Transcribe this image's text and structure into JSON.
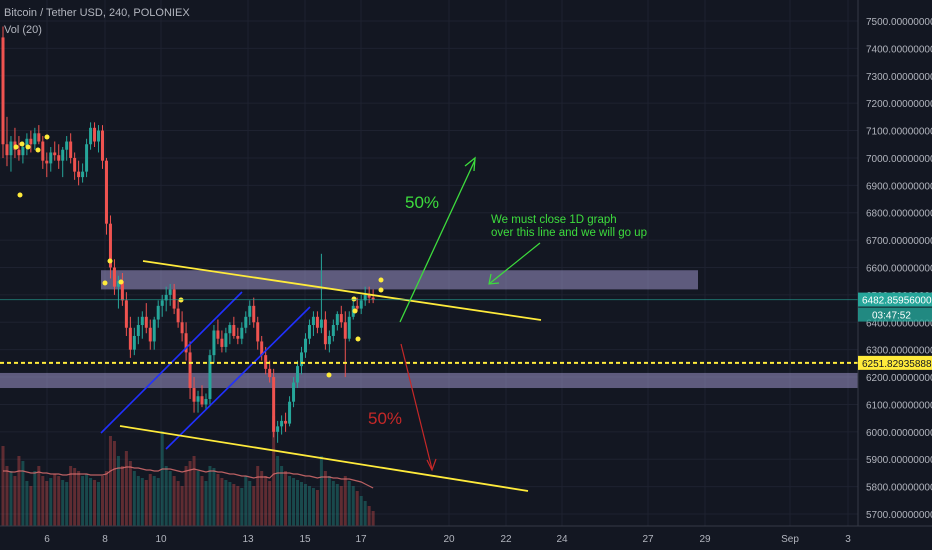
{
  "header": {
    "symbol_line": "Bitcoin / Tether USD, 240, POLONIEX",
    "volume_label": "Vol (20)"
  },
  "colors": {
    "background": "#131722",
    "grid": "#1e2230",
    "up": "#26a69a",
    "down": "#ef5350",
    "axis_text": "#b2b5be",
    "zone_fill": "#9c94c8",
    "trend_line": "#ffeb3b",
    "channel_line": "#2030ff",
    "up_arrow": "#3ddc3d",
    "down_arrow": "#c62828",
    "price_tag": "#ffeb3b",
    "current_price_tag": "#26a69a"
  },
  "chart_data": {
    "type": "candlestick",
    "yaxis": {
      "ticks": [
        "7500.00000000",
        "7400.00000000",
        "7300.00000000",
        "7200.00000000",
        "7100.00000000",
        "7000.00000000",
        "6900.00000000",
        "6800.00000000",
        "6700.00000000",
        "6600.00000000",
        "6500.00000000",
        "6400.00000000",
        "6300.00000000",
        "6200.00000000",
        "6100.00000000",
        "6000.00000000",
        "5900.00000000",
        "5800.00000000",
        "5700.00000000"
      ],
      "range": [
        5680,
        7560
      ]
    },
    "xaxis": {
      "ticks": [
        "6",
        "8",
        "10",
        "13",
        "15",
        "17",
        "20",
        "22",
        "24",
        "27",
        "29",
        "Sep",
        "3"
      ]
    },
    "price_tags": {
      "current": "6482.85956000",
      "countdown": "03:47:52",
      "dotted_level": "6251.82935888"
    },
    "annotations": {
      "up_percent": "50%",
      "down_percent": "50%",
      "note_line1": "We must close 1D graph",
      "note_line2": "over this line and we will go up"
    },
    "zones": [
      {
        "from": 6520,
        "to": 6590
      },
      {
        "from": 6160,
        "to": 6215
      }
    ],
    "candles": [
      [
        7440,
        7480,
        7000,
        7050
      ],
      [
        7050,
        7150,
        6970,
        7010
      ],
      [
        7010,
        7080,
        6950,
        7060
      ],
      [
        7060,
        7110,
        7000,
        7030
      ],
      [
        7030,
        7080,
        6990,
        7010
      ],
      [
        7010,
        7060,
        6980,
        7040
      ],
      [
        7040,
        7090,
        7010,
        7070
      ],
      [
        7070,
        7100,
        7020,
        7050
      ],
      [
        7050,
        7110,
        7030,
        7090
      ],
      [
        7090,
        7120,
        7050,
        7060
      ],
      [
        7060,
        7080,
        6960,
        6990
      ],
      [
        6990,
        7020,
        6930,
        6980
      ],
      [
        6980,
        7040,
        6950,
        7020
      ],
      [
        7020,
        7060,
        6990,
        7010
      ],
      [
        7010,
        7050,
        6960,
        6990
      ],
      [
        6990,
        7040,
        6930,
        7030
      ],
      [
        7030,
        7080,
        6990,
        7060
      ],
      [
        7060,
        7090,
        6980,
        7000
      ],
      [
        7000,
        7020,
        6920,
        6950
      ],
      [
        6950,
        6990,
        6900,
        6930
      ],
      [
        6930,
        6980,
        6910,
        6950
      ],
      [
        6950,
        7070,
        6930,
        7050
      ],
      [
        7050,
        7130,
        7030,
        7110
      ],
      [
        7110,
        7130,
        7040,
        7060
      ],
      [
        7060,
        7120,
        7020,
        7100
      ],
      [
        7100,
        7120,
        6960,
        6990
      ],
      [
        6990,
        7000,
        6720,
        6760
      ],
      [
        6760,
        6790,
        6560,
        6600
      ],
      [
        6600,
        6630,
        6500,
        6530
      ],
      [
        6530,
        6570,
        6450,
        6550
      ],
      [
        6550,
        6580,
        6460,
        6480
      ],
      [
        6480,
        6510,
        6350,
        6380
      ],
      [
        6380,
        6420,
        6270,
        6300
      ],
      [
        6300,
        6380,
        6280,
        6350
      ],
      [
        6350,
        6420,
        6320,
        6390
      ],
      [
        6390,
        6440,
        6340,
        6420
      ],
      [
        6420,
        6470,
        6360,
        6380
      ],
      [
        6380,
        6410,
        6300,
        6330
      ],
      [
        6330,
        6420,
        6300,
        6410
      ],
      [
        6410,
        6480,
        6380,
        6460
      ],
      [
        6460,
        6500,
        6420,
        6480
      ],
      [
        6480,
        6530,
        6440,
        6500
      ],
      [
        6500,
        6540,
        6460,
        6520
      ],
      [
        6520,
        6540,
        6430,
        6450
      ],
      [
        6450,
        6480,
        6380,
        6400
      ],
      [
        6400,
        6440,
        6330,
        6360
      ],
      [
        6360,
        6400,
        6260,
        6290
      ],
      [
        6290,
        6330,
        6120,
        6160
      ],
      [
        6160,
        6200,
        6070,
        6110
      ],
      [
        6110,
        6150,
        6070,
        6130
      ],
      [
        6130,
        6170,
        6090,
        6100
      ],
      [
        6100,
        6140,
        6080,
        6120
      ],
      [
        6120,
        6300,
        6100,
        6280
      ],
      [
        6280,
        6390,
        6250,
        6370
      ],
      [
        6370,
        6410,
        6320,
        6340
      ],
      [
        6340,
        6370,
        6290,
        6310
      ],
      [
        6310,
        6380,
        6290,
        6360
      ],
      [
        6360,
        6400,
        6320,
        6390
      ],
      [
        6390,
        6420,
        6340,
        6350
      ],
      [
        6350,
        6380,
        6320,
        6340
      ],
      [
        6340,
        6400,
        6320,
        6380
      ],
      [
        6380,
        6440,
        6360,
        6420
      ],
      [
        6420,
        6480,
        6390,
        6460
      ],
      [
        6460,
        6490,
        6380,
        6400
      ],
      [
        6400,
        6420,
        6300,
        6330
      ],
      [
        6330,
        6350,
        6260,
        6280
      ],
      [
        6280,
        6310,
        6210,
        6230
      ],
      [
        6230,
        6260,
        6180,
        6200
      ],
      [
        6200,
        6230,
        5980,
        6000
      ],
      [
        6000,
        6040,
        5960,
        6020
      ],
      [
        6020,
        6060,
        5990,
        6040
      ],
      [
        6040,
        6070,
        6000,
        6030
      ],
      [
        6030,
        6130,
        6020,
        6110
      ],
      [
        6110,
        6200,
        6090,
        6180
      ],
      [
        6180,
        6260,
        6160,
        6240
      ],
      [
        6240,
        6310,
        6210,
        6290
      ],
      [
        6290,
        6360,
        6270,
        6340
      ],
      [
        6340,
        6410,
        6320,
        6390
      ],
      [
        6390,
        6440,
        6350,
        6420
      ],
      [
        6420,
        6440,
        6360,
        6380
      ],
      [
        6380,
        6650,
        6360,
        6410
      ],
      [
        6410,
        6440,
        6300,
        6320
      ],
      [
        6320,
        6370,
        6290,
        6350
      ],
      [
        6350,
        6410,
        6330,
        6390
      ],
      [
        6390,
        6440,
        6370,
        6430
      ],
      [
        6430,
        6460,
        6380,
        6400
      ],
      [
        6400,
        6440,
        6200,
        6340
      ],
      [
        6340,
        6440,
        6330,
        6420
      ],
      [
        6420,
        6480,
        6410,
        6460
      ],
      [
        6460,
        6490,
        6440,
        6450
      ],
      [
        6450,
        6500,
        6430,
        6480
      ],
      [
        6480,
        6530,
        6460,
        6500
      ],
      [
        6500,
        6530,
        6470,
        6490
      ],
      [
        6490,
        6520,
        6470,
        6483
      ]
    ],
    "volumes": [
      80,
      60,
      55,
      50,
      70,
      65,
      45,
      40,
      55,
      60,
      50,
      45,
      48,
      52,
      50,
      46,
      44,
      60,
      58,
      55,
      50,
      52,
      48,
      46,
      44,
      50,
      55,
      90,
      85,
      70,
      60,
      75,
      65,
      55,
      50,
      48,
      46,
      52,
      50,
      48,
      95,
      60,
      55,
      50,
      45,
      40,
      60,
      65,
      70,
      55,
      50,
      45,
      60,
      58,
      52,
      48,
      46,
      44,
      42,
      40,
      38,
      50,
      45,
      40,
      60,
      55,
      50,
      45,
      110,
      70,
      60,
      55,
      50,
      48,
      46,
      44,
      42,
      40,
      38,
      36,
      70,
      55,
      50,
      45,
      42,
      40,
      50,
      45,
      40,
      35,
      30,
      25,
      20,
      15
    ],
    "volume_ma": [
      55,
      55,
      54,
      54,
      55,
      55,
      54,
      53,
      53,
      54,
      53,
      53,
      52,
      52,
      52,
      51,
      51,
      52,
      52,
      52,
      52,
      52,
      51,
      51,
      51,
      51,
      52,
      55,
      57,
      58,
      58,
      59,
      59,
      58,
      58,
      57,
      56,
      56,
      55,
      55,
      57,
      57,
      57,
      56,
      55,
      54,
      55,
      56,
      57,
      56,
      55,
      54,
      55,
      55,
      54,
      54,
      53,
      52,
      52,
      51,
      50,
      50,
      49,
      48,
      49,
      49,
      49,
      48,
      52,
      53,
      53,
      53,
      53,
      52,
      52,
      51,
      50,
      50,
      49,
      48,
      49,
      49,
      49,
      48,
      48,
      47,
      47,
      47,
      46,
      45,
      44,
      42,
      40,
      38
    ]
  }
}
